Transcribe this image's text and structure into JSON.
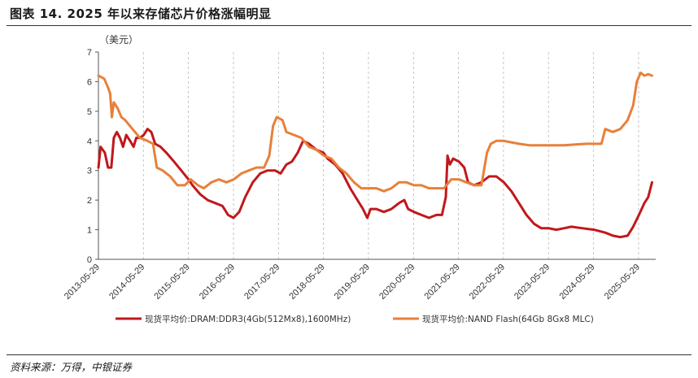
{
  "title": "图表 14. 2025 年以来存储芯片价格涨幅明显",
  "source": "资料来源：万得，中银证券",
  "chart_data": {
    "type": "line",
    "unit_label": "（美元）",
    "ylim": [
      0,
      7
    ],
    "yticks": [
      "0",
      "1",
      "2",
      "3",
      "4",
      "5",
      "6",
      "7"
    ],
    "xlim": [
      "2013-05-29",
      "2025-10-15"
    ],
    "xticks": [
      "2013-05-29",
      "2014-05-29",
      "2015-05-29",
      "2016-05-29",
      "2017-05-29",
      "2018-05-29",
      "2019-05-29",
      "2020-05-29",
      "2021-05-29",
      "2022-05-29",
      "2023-05-29",
      "2024-05-29",
      "2025-05-29"
    ],
    "grid": "vertical-dashed",
    "legend_position": "bottom",
    "series": [
      {
        "name": "现货平均价:DRAM:DDR3(4Gb(512Mx8),1600MHz)",
        "color": "#c0181c",
        "points": [
          [
            "2013-05-29",
            3.1
          ],
          [
            "2013-06-15",
            3.8
          ],
          [
            "2013-07-20",
            3.6
          ],
          [
            "2013-08-15",
            3.1
          ],
          [
            "2013-09-10",
            3.1
          ],
          [
            "2013-10-01",
            4.1
          ],
          [
            "2013-10-25",
            4.3
          ],
          [
            "2013-11-20",
            4.1
          ],
          [
            "2013-12-15",
            3.8
          ],
          [
            "2014-01-10",
            4.2
          ],
          [
            "2014-02-10",
            4.0
          ],
          [
            "2014-03-10",
            3.8
          ],
          [
            "2014-04-01",
            4.1
          ],
          [
            "2014-05-01",
            4.1
          ],
          [
            "2014-06-01",
            4.2
          ],
          [
            "2014-07-01",
            4.4
          ],
          [
            "2014-08-01",
            4.3
          ],
          [
            "2014-09-01",
            3.9
          ],
          [
            "2014-10-15",
            3.8
          ],
          [
            "2014-12-01",
            3.6
          ],
          [
            "2015-02-01",
            3.3
          ],
          [
            "2015-04-01",
            3.0
          ],
          [
            "2015-05-29",
            2.7
          ],
          [
            "2015-07-01",
            2.5
          ],
          [
            "2015-09-01",
            2.2
          ],
          [
            "2015-11-01",
            2.0
          ],
          [
            "2016-01-01",
            1.9
          ],
          [
            "2016-03-01",
            1.8
          ],
          [
            "2016-04-15",
            1.5
          ],
          [
            "2016-05-29",
            1.4
          ],
          [
            "2016-07-15",
            1.6
          ],
          [
            "2016-09-01",
            2.1
          ],
          [
            "2016-11-01",
            2.6
          ],
          [
            "2017-01-01",
            2.9
          ],
          [
            "2017-03-01",
            3.0
          ],
          [
            "2017-05-01",
            3.0
          ],
          [
            "2017-06-15",
            2.9
          ],
          [
            "2017-08-01",
            3.2
          ],
          [
            "2017-09-15",
            3.3
          ],
          [
            "2017-11-01",
            3.6
          ],
          [
            "2017-12-15",
            4.0
          ],
          [
            "2018-02-01",
            3.9
          ],
          [
            "2018-04-01",
            3.7
          ],
          [
            "2018-05-29",
            3.6
          ],
          [
            "2018-07-01",
            3.4
          ],
          [
            "2018-09-01",
            3.2
          ],
          [
            "2018-11-01",
            2.9
          ],
          [
            "2019-01-01",
            2.4
          ],
          [
            "2019-03-01",
            2.0
          ],
          [
            "2019-04-15",
            1.7
          ],
          [
            "2019-05-20",
            1.4
          ],
          [
            "2019-06-15",
            1.7
          ],
          [
            "2019-08-01",
            1.7
          ],
          [
            "2019-10-01",
            1.6
          ],
          [
            "2019-12-01",
            1.7
          ],
          [
            "2020-02-01",
            1.9
          ],
          [
            "2020-03-15",
            2.0
          ],
          [
            "2020-04-15",
            1.7
          ],
          [
            "2020-06-01",
            1.6
          ],
          [
            "2020-08-01",
            1.5
          ],
          [
            "2020-10-01",
            1.4
          ],
          [
            "2020-12-01",
            1.5
          ],
          [
            "2021-01-15",
            1.5
          ],
          [
            "2021-02-15",
            2.1
          ],
          [
            "2021-03-01",
            3.5
          ],
          [
            "2021-03-20",
            3.2
          ],
          [
            "2021-04-15",
            3.4
          ],
          [
            "2021-06-01",
            3.3
          ],
          [
            "2021-07-15",
            3.1
          ],
          [
            "2021-08-15",
            2.6
          ],
          [
            "2021-10-01",
            2.5
          ],
          [
            "2021-12-01",
            2.6
          ],
          [
            "2022-02-01",
            2.8
          ],
          [
            "2022-04-01",
            2.8
          ],
          [
            "2022-06-01",
            2.6
          ],
          [
            "2022-08-01",
            2.3
          ],
          [
            "2022-10-01",
            1.9
          ],
          [
            "2022-12-01",
            1.5
          ],
          [
            "2023-02-01",
            1.2
          ],
          [
            "2023-04-01",
            1.05
          ],
          [
            "2023-06-01",
            1.05
          ],
          [
            "2023-08-01",
            1.0
          ],
          [
            "2023-10-01",
            1.05
          ],
          [
            "2023-12-01",
            1.1
          ],
          [
            "2024-03-01",
            1.05
          ],
          [
            "2024-06-01",
            1.0
          ],
          [
            "2024-09-01",
            0.9
          ],
          [
            "2024-11-01",
            0.8
          ],
          [
            "2025-01-01",
            0.75
          ],
          [
            "2025-03-01",
            0.8
          ],
          [
            "2025-04-15",
            1.1
          ],
          [
            "2025-06-01",
            1.5
          ],
          [
            "2025-07-15",
            1.9
          ],
          [
            "2025-08-15",
            2.1
          ],
          [
            "2025-09-15",
            2.6
          ]
        ]
      },
      {
        "name": "现货平均价:NAND Flash(64Gb 8Gx8 MLC)",
        "color": "#e8803a",
        "points": [
          [
            "2013-05-29",
            6.2
          ],
          [
            "2013-07-15",
            6.1
          ],
          [
            "2013-08-15",
            5.8
          ],
          [
            "2013-09-01",
            5.6
          ],
          [
            "2013-09-15",
            4.8
          ],
          [
            "2013-10-01",
            5.3
          ],
          [
            "2013-11-01",
            5.1
          ],
          [
            "2013-12-01",
            4.8
          ],
          [
            "2014-01-01",
            4.7
          ],
          [
            "2014-03-01",
            4.4
          ],
          [
            "2014-05-01",
            4.1
          ],
          [
            "2014-07-01",
            4.0
          ],
          [
            "2014-08-15",
            3.9
          ],
          [
            "2014-09-15",
            3.1
          ],
          [
            "2014-11-01",
            3.0
          ],
          [
            "2015-01-01",
            2.8
          ],
          [
            "2015-03-01",
            2.5
          ],
          [
            "2015-05-01",
            2.5
          ],
          [
            "2015-06-15",
            2.7
          ],
          [
            "2015-08-15",
            2.5
          ],
          [
            "2015-10-01",
            2.4
          ],
          [
            "2015-12-01",
            2.6
          ],
          [
            "2016-02-01",
            2.7
          ],
          [
            "2016-04-01",
            2.6
          ],
          [
            "2016-06-01",
            2.7
          ],
          [
            "2016-08-01",
            2.9
          ],
          [
            "2016-10-01",
            3.0
          ],
          [
            "2016-12-01",
            3.1
          ],
          [
            "2017-02-01",
            3.1
          ],
          [
            "2017-03-15",
            3.5
          ],
          [
            "2017-04-15",
            4.5
          ],
          [
            "2017-05-15",
            4.8
          ],
          [
            "2017-07-01",
            4.7
          ],
          [
            "2017-08-01",
            4.3
          ],
          [
            "2017-10-01",
            4.2
          ],
          [
            "2017-12-01",
            4.1
          ],
          [
            "2018-02-01",
            3.8
          ],
          [
            "2018-04-01",
            3.7
          ],
          [
            "2018-06-01",
            3.5
          ],
          [
            "2018-08-01",
            3.4
          ],
          [
            "2018-10-01",
            3.1
          ],
          [
            "2018-12-01",
            2.9
          ],
          [
            "2019-02-01",
            2.6
          ],
          [
            "2019-04-01",
            2.4
          ],
          [
            "2019-06-01",
            2.4
          ],
          [
            "2019-08-01",
            2.4
          ],
          [
            "2019-10-01",
            2.3
          ],
          [
            "2019-12-01",
            2.4
          ],
          [
            "2020-02-01",
            2.6
          ],
          [
            "2020-04-01",
            2.6
          ],
          [
            "2020-06-01",
            2.5
          ],
          [
            "2020-08-01",
            2.5
          ],
          [
            "2020-10-01",
            2.4
          ],
          [
            "2020-12-01",
            2.4
          ],
          [
            "2021-02-01",
            2.4
          ],
          [
            "2021-04-01",
            2.7
          ],
          [
            "2021-06-01",
            2.7
          ],
          [
            "2021-08-01",
            2.6
          ],
          [
            "2021-10-01",
            2.5
          ],
          [
            "2021-12-01",
            2.5
          ],
          [
            "2022-01-15",
            3.6
          ],
          [
            "2022-02-15",
            3.9
          ],
          [
            "2022-04-01",
            4.0
          ],
          [
            "2022-06-01",
            4.0
          ],
          [
            "2022-08-01",
            3.95
          ],
          [
            "2022-10-01",
            3.9
          ],
          [
            "2023-01-01",
            3.85
          ],
          [
            "2023-04-01",
            3.85
          ],
          [
            "2023-07-01",
            3.85
          ],
          [
            "2023-10-01",
            3.85
          ],
          [
            "2024-01-01",
            3.88
          ],
          [
            "2024-04-01",
            3.9
          ],
          [
            "2024-07-01",
            3.9
          ],
          [
            "2024-08-01",
            3.9
          ],
          [
            "2024-09-01",
            4.4
          ],
          [
            "2024-11-01",
            4.3
          ],
          [
            "2025-01-01",
            4.4
          ],
          [
            "2025-03-01",
            4.7
          ],
          [
            "2025-04-15",
            5.2
          ],
          [
            "2025-05-15",
            6.0
          ],
          [
            "2025-06-15",
            6.3
          ],
          [
            "2025-07-15",
            6.2
          ],
          [
            "2025-08-15",
            6.25
          ],
          [
            "2025-09-15",
            6.2
          ]
        ]
      }
    ]
  }
}
